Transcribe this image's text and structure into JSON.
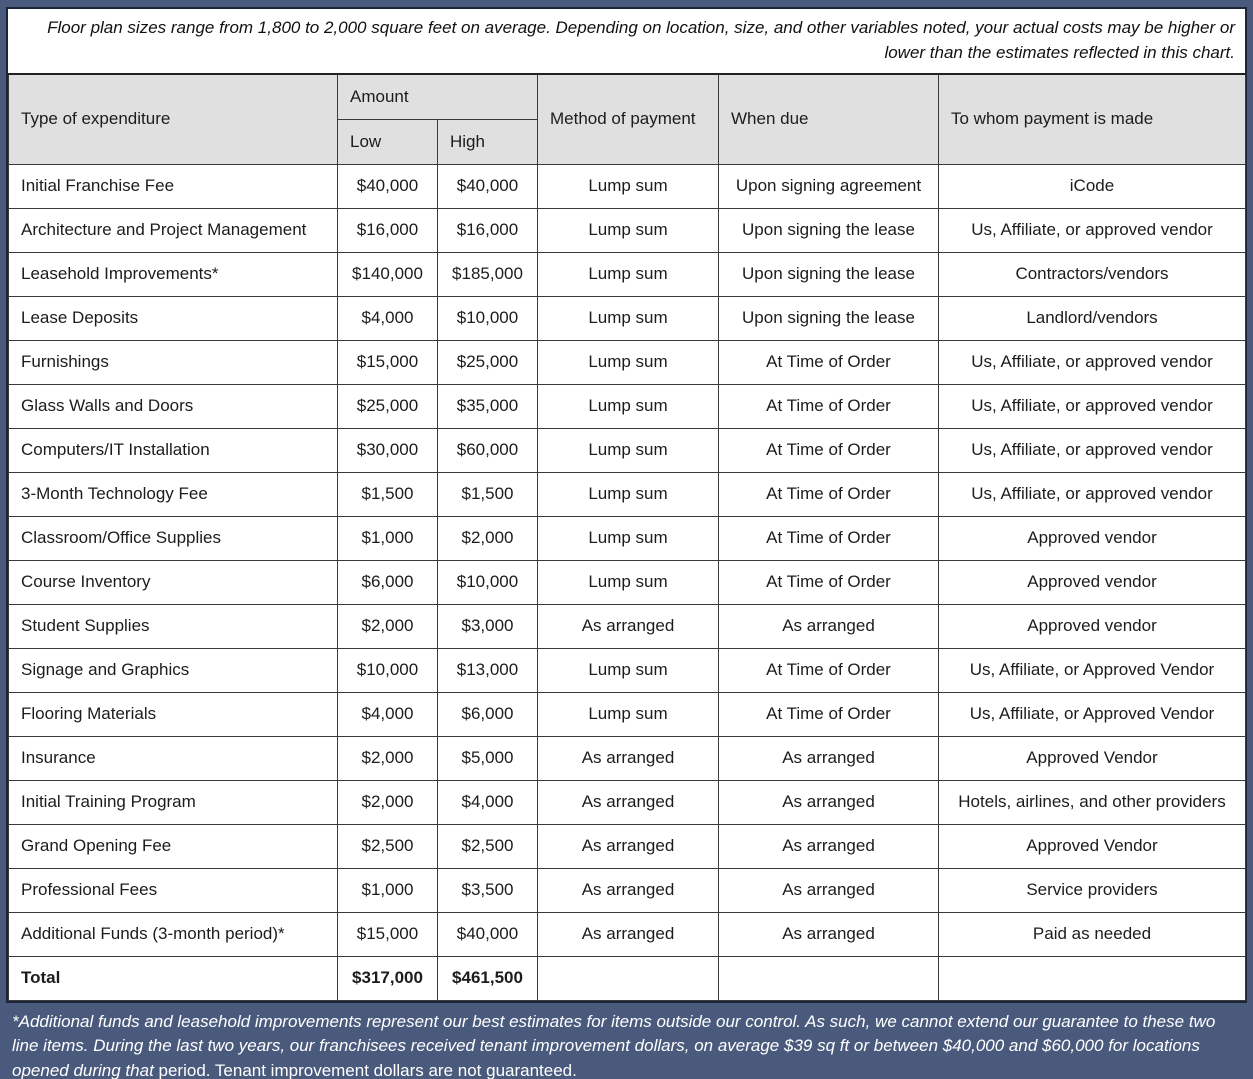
{
  "top_note": {
    "text": "Floor plan sizes range from 1,800 to 2,000 square feet on average. Depending on location, size, and other variables noted, your actual costs may be higher or lower than the estimates reflected in this chart."
  },
  "table": {
    "headers": {
      "type": "Type of expenditure",
      "amount": "Amount",
      "low": "Low",
      "high": "High",
      "method": "Method of payment",
      "when_due": "When due",
      "to_whom": "To whom payment is made"
    },
    "rows": [
      [
        "Initial Franchise Fee",
        "$40,000",
        "$40,000",
        "Lump sum",
        "Upon signing agreement",
        "iCode"
      ],
      [
        "Architecture and Project Management",
        "$16,000",
        "$16,000",
        "Lump sum",
        "Upon signing the lease",
        "Us, Affiliate, or approved vendor"
      ],
      [
        "Leasehold Improvements*",
        "$140,000",
        "$185,000",
        "Lump sum",
        "Upon signing the lease",
        "Contractors/vendors"
      ],
      [
        "Lease Deposits",
        "$4,000",
        "$10,000",
        "Lump sum",
        "Upon signing the lease",
        "Landlord/vendors"
      ],
      [
        "Furnishings",
        "$15,000",
        "$25,000",
        "Lump sum",
        "At Time of Order",
        "Us, Affiliate, or approved vendor"
      ],
      [
        "Glass Walls and Doors",
        "$25,000",
        "$35,000",
        "Lump sum",
        "At Time of Order",
        "Us, Affiliate, or approved vendor"
      ],
      [
        "Computers/IT Installation",
        "$30,000",
        "$60,000",
        "Lump sum",
        "At Time of Order",
        "Us, Affiliate, or approved vendor"
      ],
      [
        "3-Month Technology Fee",
        "$1,500",
        "$1,500",
        "Lump sum",
        "At Time of Order",
        "Us, Affiliate, or approved vendor"
      ],
      [
        "Classroom/Office Supplies",
        "$1,000",
        "$2,000",
        "Lump sum",
        "At Time of Order",
        "Approved vendor"
      ],
      [
        "Course Inventory",
        "$6,000",
        "$10,000",
        "Lump sum",
        "At Time of Order",
        "Approved vendor"
      ],
      [
        "Student Supplies",
        "$2,000",
        "$3,000",
        "As arranged",
        "As arranged",
        "Approved vendor"
      ],
      [
        "Signage and Graphics",
        "$10,000",
        "$13,000",
        "Lump sum",
        "At Time of Order",
        "Us, Affiliate, or Approved Vendor"
      ],
      [
        "Flooring Materials",
        "$4,000",
        "$6,000",
        "Lump sum",
        "At Time of Order",
        "Us, Affiliate, or Approved Vendor"
      ],
      [
        "Insurance",
        "$2,000",
        "$5,000",
        "As arranged",
        "As arranged",
        "Approved Vendor"
      ],
      [
        "Initial Training Program",
        "$2,000",
        "$4,000",
        "As arranged",
        "As arranged",
        "Hotels, airlines, and other providers"
      ],
      [
        "Grand Opening Fee",
        "$2,500",
        "$2,500",
        "As arranged",
        "As arranged",
        "Approved Vendor"
      ],
      [
        "Professional Fees",
        "$1,000",
        "$3,500",
        "As arranged",
        "As arranged",
        "Service providers"
      ],
      [
        "Additional Funds (3-month period)*",
        "$15,000",
        "$40,000",
        "As arranged",
        "As arranged",
        "Paid as needed"
      ]
    ],
    "total_row": {
      "label": "Total",
      "low": "$317,000",
      "high": "$461,500",
      "method": "",
      "when_due": "",
      "to_whom": ""
    }
  },
  "footnote": {
    "italic_part": "*Additional funds and leasehold improvements represent our best estimates for items outside our control. As such, we cannot extend our guarantee to these two line items. During the last two years, our franchisees received tenant improvement dollars, on average $39 sq ft or between $40,000 and $60,000 for locations opened during that",
    "regular_part": " period. Tenant improvement dollars are not guaranteed."
  },
  "colors": {
    "frame_blue": "#4a5a7d",
    "header_gray": "#e0e0e0",
    "wrapper_border": "#1c2539",
    "cell_border": "#3a3a3a",
    "body_text": "#1a1a1a",
    "footnote_text": "#ffffff"
  }
}
